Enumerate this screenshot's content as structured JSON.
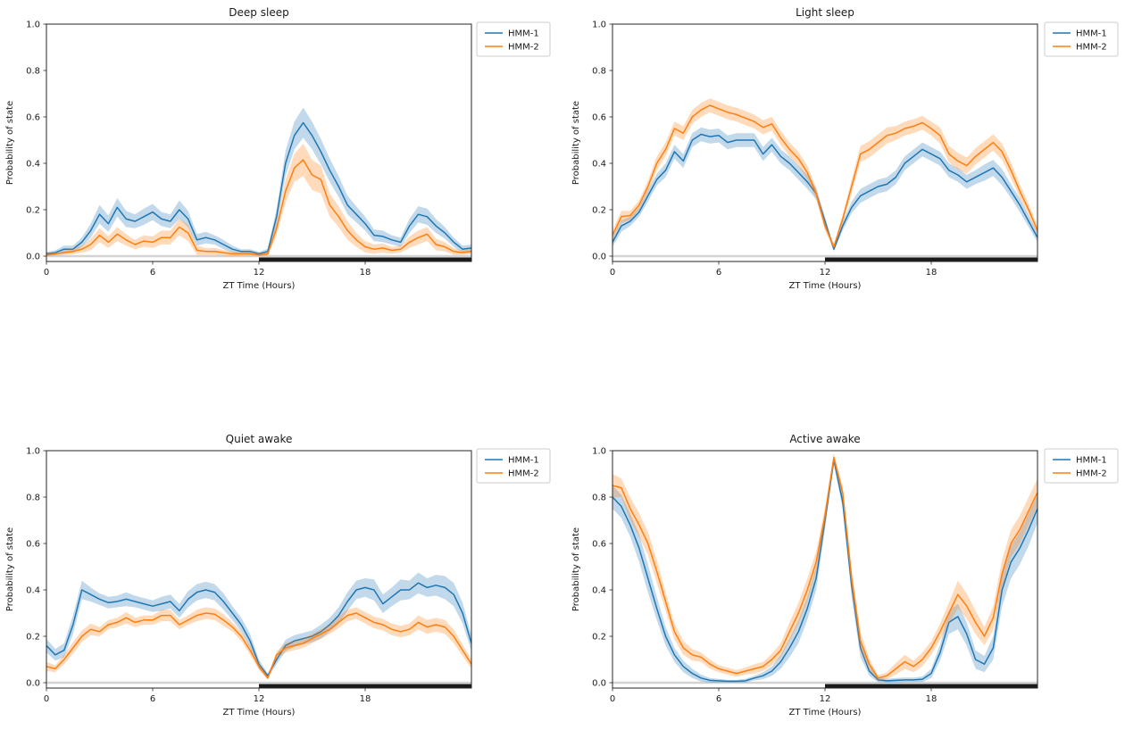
{
  "figure": {
    "background": "#ffffff"
  },
  "colors": {
    "hmm1": "#1f77b4",
    "hmm2": "#ff7f0e",
    "hmm1_band": "rgba(31,119,180,0.28)",
    "hmm2_band": "rgba(255,127,14,0.28)",
    "zero_line": "#d3d3d3",
    "dark_phase": "#1a1a1a",
    "spine": "#262626"
  },
  "legend": {
    "items": [
      "HMM-1",
      "HMM-2"
    ]
  },
  "chart_data": [
    {
      "type": "line",
      "title": "Deep sleep",
      "xlabel": "ZT Time (Hours)",
      "ylabel": "Probability of state",
      "x_start": 0,
      "x_step": 0.5,
      "xlim": [
        0,
        24
      ],
      "ylim": [
        -0.023,
        1.0
      ],
      "xticks": [
        0,
        6,
        12,
        18
      ],
      "xtick_labels": [
        "0",
        "6",
        "12",
        "18"
      ],
      "yticks": [
        0,
        0.2,
        0.4,
        0.6,
        0.8,
        1.0
      ],
      "ytick_labels": [
        "0.0",
        "0.2",
        "0.4",
        "0.6",
        "0.8",
        "1.0"
      ],
      "grid": false,
      "legend_position": "outside-upper-right",
      "dark_phase": [
        12,
        24
      ],
      "light_phase": [
        0,
        12
      ],
      "series": [
        {
          "name": "HMM-1",
          "color": "#1f77b4",
          "band_color": "rgba(31,119,180,0.28)",
          "values": [
            0.01,
            0.015,
            0.03,
            0.03,
            0.06,
            0.11,
            0.18,
            0.14,
            0.21,
            0.16,
            0.15,
            0.17,
            0.19,
            0.16,
            0.15,
            0.2,
            0.16,
            0.07,
            0.08,
            0.07,
            0.05,
            0.03,
            0.02,
            0.02,
            0.01,
            0.02,
            0.17,
            0.4,
            0.52,
            0.575,
            0.52,
            0.45,
            0.37,
            0.3,
            0.22,
            0.18,
            0.14,
            0.09,
            0.085,
            0.07,
            0.06,
            0.13,
            0.18,
            0.17,
            0.13,
            0.1,
            0.06,
            0.03,
            0.035
          ],
          "ci": [
            0.008,
            0.01,
            0.015,
            0.015,
            0.02,
            0.03,
            0.04,
            0.035,
            0.04,
            0.035,
            0.03,
            0.035,
            0.035,
            0.03,
            0.03,
            0.04,
            0.035,
            0.025,
            0.025,
            0.02,
            0.02,
            0.015,
            0.01,
            0.01,
            0.008,
            0.012,
            0.035,
            0.055,
            0.06,
            0.065,
            0.06,
            0.055,
            0.05,
            0.045,
            0.04,
            0.035,
            0.03,
            0.025,
            0.025,
            0.02,
            0.02,
            0.03,
            0.035,
            0.035,
            0.03,
            0.025,
            0.02,
            0.015,
            0.015
          ]
        },
        {
          "name": "HMM-2",
          "color": "#ff7f0e",
          "band_color": "rgba(255,127,14,0.28)",
          "values": [
            0.005,
            0.01,
            0.015,
            0.02,
            0.03,
            0.05,
            0.09,
            0.06,
            0.095,
            0.07,
            0.05,
            0.065,
            0.06,
            0.08,
            0.08,
            0.125,
            0.1,
            0.025,
            0.02,
            0.02,
            0.015,
            0.01,
            0.01,
            0.01,
            0.005,
            0.01,
            0.12,
            0.28,
            0.38,
            0.415,
            0.35,
            0.33,
            0.22,
            0.17,
            0.11,
            0.07,
            0.04,
            0.03,
            0.035,
            0.025,
            0.03,
            0.06,
            0.08,
            0.095,
            0.05,
            0.04,
            0.02,
            0.015,
            0.02
          ],
          "ci": [
            0.005,
            0.008,
            0.01,
            0.012,
            0.015,
            0.025,
            0.03,
            0.025,
            0.03,
            0.025,
            0.02,
            0.025,
            0.025,
            0.03,
            0.03,
            0.035,
            0.035,
            0.02,
            0.015,
            0.015,
            0.012,
            0.01,
            0.008,
            0.008,
            0.005,
            0.01,
            0.03,
            0.05,
            0.06,
            0.07,
            0.065,
            0.06,
            0.05,
            0.045,
            0.04,
            0.03,
            0.025,
            0.02,
            0.02,
            0.015,
            0.015,
            0.025,
            0.03,
            0.03,
            0.025,
            0.02,
            0.015,
            0.01,
            0.012
          ]
        }
      ]
    },
    {
      "type": "line",
      "title": "Light sleep",
      "xlabel": "ZT Time (Hours)",
      "ylabel": "Probability of state",
      "x_start": 0,
      "x_step": 0.5,
      "xlim": [
        0,
        24
      ],
      "ylim": [
        -0.023,
        1.0
      ],
      "xticks": [
        0,
        6,
        12,
        18
      ],
      "xtick_labels": [
        "0",
        "6",
        "12",
        "18"
      ],
      "yticks": [
        0,
        0.2,
        0.4,
        0.6,
        0.8,
        1.0
      ],
      "ytick_labels": [
        "0.0",
        "0.2",
        "0.4",
        "0.6",
        "0.8",
        "1.0"
      ],
      "grid": false,
      "legend_position": "outside-upper-right",
      "dark_phase": [
        12,
        24
      ],
      "light_phase": [
        0,
        12
      ],
      "series": [
        {
          "name": "HMM-1",
          "color": "#1f77b4",
          "band_color": "rgba(31,119,180,0.28)",
          "values": [
            0.06,
            0.13,
            0.15,
            0.19,
            0.26,
            0.33,
            0.37,
            0.45,
            0.41,
            0.5,
            0.525,
            0.515,
            0.52,
            0.49,
            0.5,
            0.5,
            0.5,
            0.44,
            0.48,
            0.43,
            0.4,
            0.36,
            0.32,
            0.27,
            0.15,
            0.03,
            0.13,
            0.21,
            0.26,
            0.28,
            0.3,
            0.31,
            0.34,
            0.4,
            0.43,
            0.46,
            0.44,
            0.42,
            0.37,
            0.35,
            0.32,
            0.34,
            0.36,
            0.38,
            0.34,
            0.28,
            0.22,
            0.15,
            0.08
          ],
          "ci": [
            0.02,
            0.025,
            0.02,
            0.02,
            0.025,
            0.025,
            0.03,
            0.03,
            0.03,
            0.03,
            0.03,
            0.03,
            0.03,
            0.03,
            0.03,
            0.03,
            0.03,
            0.03,
            0.03,
            0.03,
            0.03,
            0.03,
            0.03,
            0.025,
            0.02,
            0.01,
            0.02,
            0.025,
            0.03,
            0.03,
            0.03,
            0.03,
            0.03,
            0.03,
            0.03,
            0.03,
            0.03,
            0.03,
            0.03,
            0.03,
            0.03,
            0.03,
            0.035,
            0.035,
            0.035,
            0.03,
            0.03,
            0.025,
            0.02
          ]
        },
        {
          "name": "HMM-2",
          "color": "#ff7f0e",
          "band_color": "rgba(255,127,14,0.28)",
          "values": [
            0.09,
            0.17,
            0.175,
            0.22,
            0.3,
            0.4,
            0.46,
            0.55,
            0.53,
            0.6,
            0.63,
            0.65,
            0.635,
            0.62,
            0.61,
            0.595,
            0.58,
            0.555,
            0.57,
            0.51,
            0.46,
            0.42,
            0.36,
            0.27,
            0.13,
            0.04,
            0.16,
            0.3,
            0.44,
            0.46,
            0.49,
            0.52,
            0.53,
            0.55,
            0.56,
            0.575,
            0.55,
            0.52,
            0.44,
            0.41,
            0.39,
            0.43,
            0.46,
            0.49,
            0.45,
            0.37,
            0.28,
            0.2,
            0.11
          ],
          "ci": [
            0.02,
            0.025,
            0.02,
            0.02,
            0.025,
            0.03,
            0.03,
            0.03,
            0.03,
            0.03,
            0.03,
            0.03,
            0.03,
            0.03,
            0.03,
            0.03,
            0.03,
            0.03,
            0.03,
            0.03,
            0.03,
            0.03,
            0.03,
            0.025,
            0.02,
            0.01,
            0.02,
            0.03,
            0.035,
            0.035,
            0.035,
            0.035,
            0.03,
            0.03,
            0.03,
            0.03,
            0.03,
            0.035,
            0.035,
            0.035,
            0.035,
            0.035,
            0.035,
            0.035,
            0.035,
            0.035,
            0.03,
            0.025,
            0.02
          ]
        }
      ]
    },
    {
      "type": "line",
      "title": "Quiet awake",
      "xlabel": "ZT Time (Hours)",
      "ylabel": "Probability of state",
      "x_start": 0,
      "x_step": 0.5,
      "xlim": [
        0,
        24
      ],
      "ylim": [
        -0.023,
        1.0
      ],
      "xticks": [
        0,
        6,
        12,
        18
      ],
      "xtick_labels": [
        "0",
        "6",
        "12",
        "18"
      ],
      "yticks": [
        0,
        0.2,
        0.4,
        0.6,
        0.8,
        1.0
      ],
      "ytick_labels": [
        "0.0",
        "0.2",
        "0.4",
        "0.6",
        "0.8",
        "1.0"
      ],
      "grid": false,
      "legend_position": "outside-upper-right",
      "dark_phase": [
        12,
        24
      ],
      "light_phase": [
        0,
        12
      ],
      "series": [
        {
          "name": "HMM-1",
          "color": "#1f77b4",
          "band_color": "rgba(31,119,180,0.28)",
          "values": [
            0.16,
            0.12,
            0.14,
            0.25,
            0.4,
            0.38,
            0.36,
            0.345,
            0.35,
            0.36,
            0.35,
            0.34,
            0.33,
            0.34,
            0.35,
            0.31,
            0.36,
            0.39,
            0.4,
            0.39,
            0.35,
            0.3,
            0.25,
            0.18,
            0.08,
            0.03,
            0.1,
            0.16,
            0.18,
            0.19,
            0.2,
            0.22,
            0.25,
            0.29,
            0.35,
            0.4,
            0.41,
            0.4,
            0.34,
            0.37,
            0.4,
            0.4,
            0.43,
            0.41,
            0.42,
            0.41,
            0.38,
            0.3,
            0.17
          ],
          "ci": [
            0.03,
            0.025,
            0.03,
            0.04,
            0.04,
            0.03,
            0.025,
            0.025,
            0.025,
            0.03,
            0.025,
            0.025,
            0.025,
            0.03,
            0.03,
            0.03,
            0.035,
            0.035,
            0.035,
            0.035,
            0.035,
            0.03,
            0.03,
            0.03,
            0.02,
            0.01,
            0.02,
            0.025,
            0.025,
            0.025,
            0.025,
            0.03,
            0.03,
            0.035,
            0.04,
            0.04,
            0.04,
            0.045,
            0.04,
            0.04,
            0.045,
            0.04,
            0.045,
            0.04,
            0.045,
            0.05,
            0.05,
            0.045,
            0.035
          ]
        },
        {
          "name": "HMM-2",
          "color": "#ff7f0e",
          "band_color": "rgba(255,127,14,0.28)",
          "values": [
            0.07,
            0.06,
            0.1,
            0.15,
            0.2,
            0.23,
            0.22,
            0.25,
            0.26,
            0.28,
            0.26,
            0.27,
            0.27,
            0.29,
            0.29,
            0.25,
            0.27,
            0.29,
            0.3,
            0.295,
            0.27,
            0.24,
            0.2,
            0.14,
            0.07,
            0.02,
            0.12,
            0.15,
            0.16,
            0.17,
            0.19,
            0.21,
            0.23,
            0.26,
            0.29,
            0.3,
            0.28,
            0.26,
            0.25,
            0.23,
            0.22,
            0.23,
            0.26,
            0.24,
            0.25,
            0.24,
            0.2,
            0.14,
            0.08
          ],
          "ci": [
            0.02,
            0.015,
            0.02,
            0.025,
            0.025,
            0.025,
            0.02,
            0.02,
            0.02,
            0.025,
            0.02,
            0.02,
            0.02,
            0.025,
            0.025,
            0.02,
            0.02,
            0.025,
            0.025,
            0.025,
            0.025,
            0.02,
            0.02,
            0.02,
            0.015,
            0.008,
            0.015,
            0.02,
            0.02,
            0.02,
            0.02,
            0.02,
            0.02,
            0.025,
            0.025,
            0.025,
            0.025,
            0.025,
            0.025,
            0.025,
            0.025,
            0.025,
            0.03,
            0.03,
            0.03,
            0.03,
            0.03,
            0.025,
            0.02
          ]
        }
      ]
    },
    {
      "type": "line",
      "title": "Active awake",
      "xlabel": "ZT Time (Hours)",
      "ylabel": "Probability of state",
      "x_start": 0,
      "x_step": 0.5,
      "xlim": [
        0,
        24
      ],
      "ylim": [
        -0.023,
        1.0
      ],
      "xticks": [
        0,
        6,
        12,
        18
      ],
      "xtick_labels": [
        "0",
        "6",
        "12",
        "18"
      ],
      "yticks": [
        0,
        0.2,
        0.4,
        0.6,
        0.8,
        1.0
      ],
      "ytick_labels": [
        "0.0",
        "0.2",
        "0.4",
        "0.6",
        "0.8",
        "1.0"
      ],
      "grid": false,
      "legend_position": "outside-upper-right",
      "dark_phase": [
        12,
        24
      ],
      "light_phase": [
        0,
        12
      ],
      "series": [
        {
          "name": "HMM-1",
          "color": "#1f77b4",
          "band_color": "rgba(31,119,180,0.28)",
          "values": [
            0.8,
            0.76,
            0.68,
            0.58,
            0.45,
            0.32,
            0.2,
            0.12,
            0.07,
            0.04,
            0.02,
            0.01,
            0.008,
            0.006,
            0.006,
            0.008,
            0.02,
            0.03,
            0.05,
            0.09,
            0.15,
            0.22,
            0.32,
            0.45,
            0.7,
            0.96,
            0.78,
            0.42,
            0.15,
            0.05,
            0.012,
            0.008,
            0.01,
            0.012,
            0.012,
            0.015,
            0.04,
            0.13,
            0.26,
            0.285,
            0.21,
            0.1,
            0.08,
            0.15,
            0.4,
            0.52,
            0.58,
            0.66,
            0.75
          ],
          "ci": [
            0.05,
            0.05,
            0.05,
            0.06,
            0.06,
            0.05,
            0.04,
            0.03,
            0.025,
            0.02,
            0.015,
            0.01,
            0.008,
            0.006,
            0.006,
            0.008,
            0.01,
            0.015,
            0.02,
            0.03,
            0.04,
            0.05,
            0.05,
            0.05,
            0.04,
            0.02,
            0.03,
            0.05,
            0.04,
            0.02,
            0.01,
            0.008,
            0.01,
            0.01,
            0.01,
            0.012,
            0.02,
            0.035,
            0.05,
            0.055,
            0.05,
            0.04,
            0.035,
            0.05,
            0.07,
            0.07,
            0.07,
            0.07,
            0.06
          ]
        },
        {
          "name": "HMM-2",
          "color": "#ff7f0e",
          "band_color": "rgba(255,127,14,0.28)",
          "values": [
            0.85,
            0.84,
            0.75,
            0.68,
            0.6,
            0.48,
            0.35,
            0.22,
            0.15,
            0.12,
            0.11,
            0.08,
            0.06,
            0.05,
            0.04,
            0.05,
            0.06,
            0.07,
            0.1,
            0.14,
            0.22,
            0.3,
            0.4,
            0.52,
            0.72,
            0.97,
            0.82,
            0.45,
            0.18,
            0.08,
            0.02,
            0.03,
            0.06,
            0.09,
            0.07,
            0.1,
            0.15,
            0.22,
            0.3,
            0.38,
            0.33,
            0.26,
            0.2,
            0.28,
            0.47,
            0.6,
            0.66,
            0.74,
            0.82
          ],
          "ci": [
            0.05,
            0.04,
            0.05,
            0.05,
            0.05,
            0.05,
            0.04,
            0.035,
            0.03,
            0.025,
            0.02,
            0.02,
            0.015,
            0.015,
            0.015,
            0.015,
            0.02,
            0.02,
            0.025,
            0.03,
            0.04,
            0.045,
            0.05,
            0.045,
            0.035,
            0.02,
            0.025,
            0.045,
            0.04,
            0.025,
            0.012,
            0.015,
            0.025,
            0.03,
            0.025,
            0.03,
            0.03,
            0.035,
            0.045,
            0.06,
            0.055,
            0.05,
            0.04,
            0.05,
            0.06,
            0.06,
            0.06,
            0.06,
            0.06
          ]
        }
      ]
    }
  ]
}
